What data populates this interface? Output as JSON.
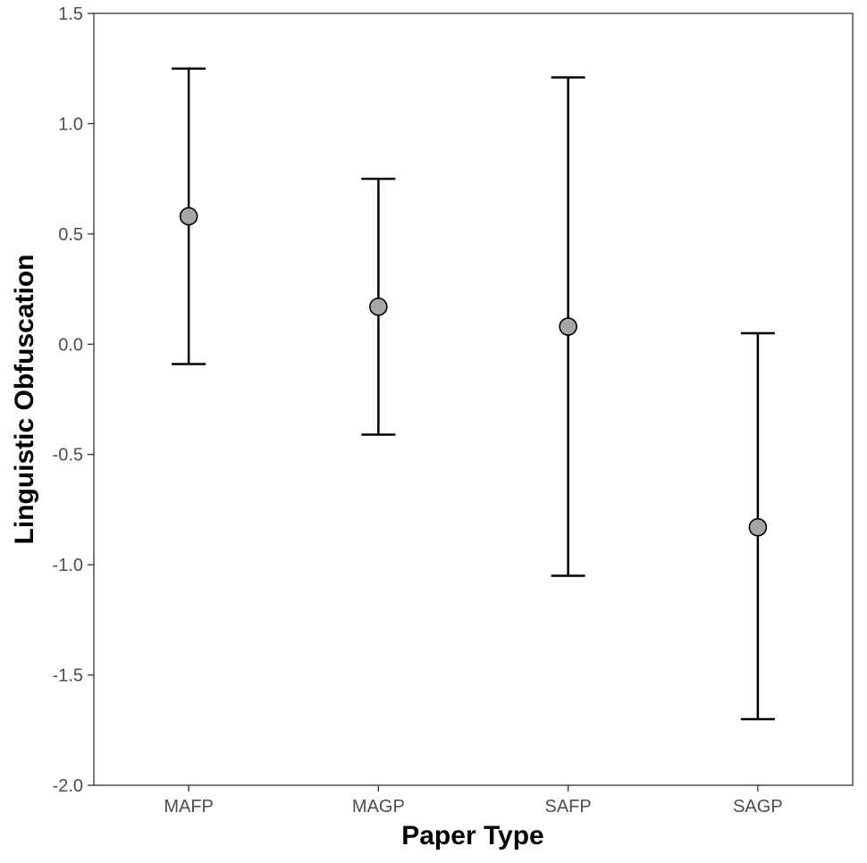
{
  "chart_data": {
    "type": "scatter",
    "title": "",
    "xlabel": "Paper Type",
    "ylabel": "Linguistic Obfuscation",
    "categories": [
      "MAFP",
      "MAGP",
      "SAFP",
      "SAGP"
    ],
    "series": [
      {
        "values": [
          0.58,
          0.17,
          0.08,
          -0.83
        ],
        "lower": [
          -0.09,
          -0.41,
          -1.05,
          -1.7
        ],
        "upper": [
          1.25,
          0.75,
          1.21,
          0.05
        ]
      }
    ],
    "ylim": [
      -2.0,
      1.5
    ],
    "y_ticks": [
      "-2.0",
      "-1.5",
      "-1.0",
      "-0.5",
      "0.0",
      "0.5",
      "1.0",
      "1.5"
    ],
    "y_tick_values": [
      -2.0,
      -1.5,
      -1.0,
      -0.5,
      0.0,
      0.5,
      1.0,
      1.5
    ],
    "grid": false,
    "legend": "none",
    "point_fill": "#a6a6a6",
    "line_color": "#000000"
  }
}
